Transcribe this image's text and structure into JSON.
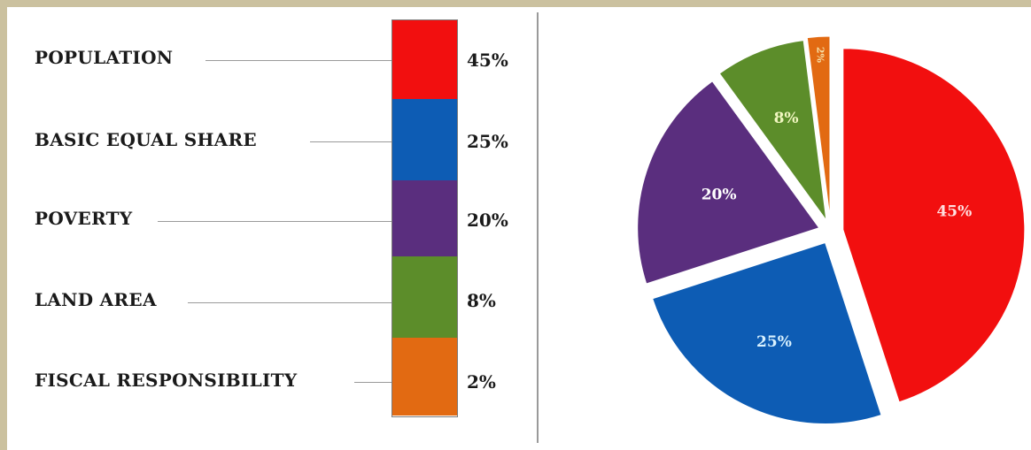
{
  "chart_data": {
    "type": "pie",
    "categories": [
      "POPULATION",
      "BASIC EQUAL SHARE",
      "POVERTY",
      "LAND AREA",
      "FISCAL RESPONSIBILITY"
    ],
    "values": [
      45,
      25,
      20,
      8,
      2
    ],
    "value_labels": [
      "45%",
      "25%",
      "20%",
      "8%",
      "2%"
    ],
    "colors": [
      "#f20f0f",
      "#0d5cb4",
      "#5a2e7e",
      "#5c8d2a",
      "#e26a12"
    ],
    "legend_placement": "left",
    "exploded": true
  }
}
